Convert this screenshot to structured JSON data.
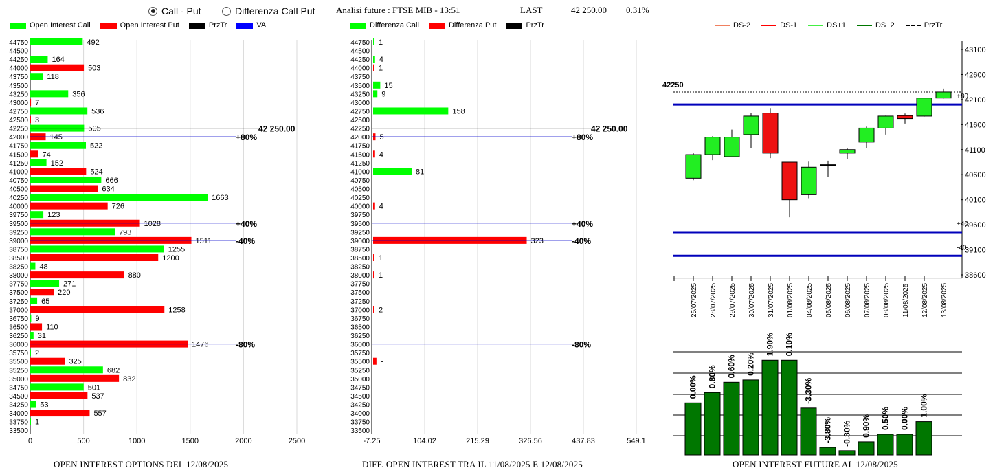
{
  "header": {
    "radio_callput": "Call - Put",
    "radio_diff": "Differenza Call Put",
    "title": "Analisi future : FTSE MIB - 13:51",
    "last_label": "LAST",
    "last_value": "42 250.00",
    "last_change": "0.31%"
  },
  "colors": {
    "green": "#00ff00",
    "red": "#ff0000",
    "blue": "#0000cc",
    "dark_green": "#007700"
  },
  "legends": {
    "left": [
      "Open Interest Call",
      "Open Interest Put",
      "PrzTr",
      "VA"
    ],
    "mid": [
      "Differenza Call",
      "Differenza Put",
      "PrzTr"
    ],
    "right": [
      "DS-2",
      "DS-1",
      "DS+1",
      "DS+2",
      "PrzTr"
    ]
  },
  "footers": {
    "left": "OPEN INTEREST OPTIONS DEL 12/08/2025",
    "mid": "DIFF. OPEN INTEREST TRA IL 11/08/2025 E 12/08/2025",
    "right": "OPEN INTEREST FUTURE AL 12/08/2025"
  },
  "chart_data": [
    {
      "type": "bar",
      "orientation": "horizontal",
      "strikes": [
        44750,
        44500,
        44250,
        44000,
        43750,
        43500,
        43250,
        43000,
        42750,
        42500,
        42250,
        42000,
        41750,
        41500,
        41250,
        41000,
        40750,
        40500,
        40250,
        40000,
        39750,
        39500,
        39250,
        39000,
        38750,
        38500,
        38250,
        38000,
        37750,
        37500,
        37250,
        37000,
        36750,
        36500,
        36250,
        36000,
        35750,
        35500,
        35250,
        35000,
        34750,
        34500,
        34250,
        34000,
        33750,
        33500
      ],
      "series": [
        {
          "name": "Open Interest Call",
          "points": [
            [
              44750,
              492
            ],
            [
              44250,
              164
            ],
            [
              43750,
              118
            ],
            [
              43250,
              356
            ],
            [
              42750,
              536
            ],
            [
              42250,
              505
            ],
            [
              41750,
              522
            ],
            [
              41250,
              152
            ],
            [
              40750,
              666
            ],
            [
              40250,
              1663
            ],
            [
              39750,
              123
            ],
            [
              39250,
              793
            ],
            [
              38750,
              1255
            ],
            [
              38250,
              48
            ],
            [
              37750,
              271
            ],
            [
              37250,
              65
            ],
            [
              36750,
              9
            ],
            [
              36250,
              31
            ],
            [
              35750,
              2
            ],
            [
              35250,
              682
            ],
            [
              34750,
              501
            ],
            [
              34250,
              53
            ],
            [
              33750,
              1
            ]
          ]
        },
        {
          "name": "Open Interest Put",
          "points": [
            [
              44000,
              503
            ],
            [
              43000,
              7
            ],
            [
              42500,
              3
            ],
            [
              42000,
              145
            ],
            [
              41500,
              74
            ],
            [
              41000,
              524
            ],
            [
              40500,
              634
            ],
            [
              40000,
              726
            ],
            [
              39500,
              1028
            ],
            [
              39000,
              1511
            ],
            [
              38500,
              1200
            ],
            [
              38000,
              880
            ],
            [
              37500,
              220
            ],
            [
              37000,
              1258
            ],
            [
              36500,
              110
            ],
            [
              36000,
              1476
            ],
            [
              35500,
              325
            ],
            [
              35000,
              832
            ],
            [
              34500,
              537
            ],
            [
              34000,
              557
            ]
          ]
        }
      ],
      "levels": [
        {
          "strike": 42250,
          "label": "42 250.00"
        },
        {
          "strike": 42000,
          "label": "+80%"
        },
        {
          "strike": 39500,
          "label": "+40%"
        },
        {
          "strike": 39000,
          "label": "-40%"
        },
        {
          "strike": 36000,
          "label": "-80%"
        }
      ],
      "x_ticks": [
        0,
        500,
        1000,
        1500,
        2000,
        2500
      ],
      "xlim": [
        0,
        2500
      ]
    },
    {
      "type": "bar",
      "orientation": "horizontal",
      "series": [
        {
          "name": "Differenza Call",
          "points": [
            [
              44750,
              1
            ],
            [
              44250,
              4
            ],
            [
              43500,
              15
            ],
            [
              43250,
              9
            ],
            [
              42750,
              158
            ],
            [
              41000,
              81
            ]
          ],
          "labels": [
            "1",
            "4",
            "15",
            "9",
            "158",
            "81"
          ]
        },
        {
          "name": "Differenza Put",
          "points": [
            [
              44000,
              1
            ],
            [
              42000,
              5
            ],
            [
              41500,
              4
            ],
            [
              40000,
              4
            ],
            [
              39000,
              323
            ],
            [
              38500,
              1
            ],
            [
              38000,
              1
            ],
            [
              37000,
              2
            ],
            [
              35500,
              7
            ]
          ],
          "labels": [
            "1",
            "5",
            "4",
            "4",
            "323",
            "1",
            "1",
            "2",
            "-"
          ]
        }
      ],
      "levels": [
        {
          "strike": 42250,
          "label": "42 250.00"
        },
        {
          "strike": 42000,
          "label": "+80%"
        },
        {
          "strike": 39500,
          "label": "+40%"
        },
        {
          "strike": 39000,
          "label": "-40%"
        },
        {
          "strike": 36000,
          "label": "-80%"
        }
      ],
      "x_ticks": [
        "-7.25",
        "104.02",
        "215.29",
        "326.56",
        "437.83",
        "549.1"
      ],
      "xlim": [
        -7.25,
        549.1
      ]
    },
    {
      "type": "candlestick",
      "dates": [
        "25/07/2025",
        "28/07/2025",
        "29/07/2025",
        "30/07/2025",
        "31/07/2025",
        "01/08/2025",
        "04/08/2025",
        "05/08/2025",
        "06/08/2025",
        "07/08/2025",
        "08/08/2025",
        "11/08/2025",
        "12/08/2025",
        "13/08/2025"
      ],
      "ohlc": [
        [
          40530,
          41030,
          40490,
          41000
        ],
        [
          41000,
          41370,
          40890,
          41350
        ],
        [
          40960,
          41500,
          40950,
          41350
        ],
        [
          41400,
          41830,
          41130,
          41770
        ],
        [
          41830,
          41930,
          40930,
          41030
        ],
        [
          40850,
          40850,
          39750,
          40100
        ],
        [
          40200,
          40860,
          40130,
          40750
        ],
        [
          40800,
          40880,
          40560,
          40800
        ],
        [
          41030,
          41130,
          40910,
          41100
        ],
        [
          41250,
          41560,
          41130,
          41530
        ],
        [
          41530,
          41780,
          41400,
          41770
        ],
        [
          41780,
          41820,
          41620,
          41720
        ],
        [
          41770,
          42130,
          41760,
          42130
        ],
        [
          42130,
          42320,
          42120,
          42250
        ]
      ],
      "y_ticks": [
        43100,
        42600,
        42100,
        41600,
        41100,
        40600,
        40100,
        39600,
        39100,
        38600
      ],
      "ylim": [
        38600,
        43200
      ],
      "last_price": 42250,
      "last_label": "42250",
      "levels": [
        {
          "value": 42000,
          "label": "+80"
        },
        {
          "value": 39450,
          "label": "+40"
        },
        {
          "value": 38980,
          "label": "-40"
        }
      ]
    },
    {
      "type": "bar",
      "values": [
        1110,
        1330,
        1550,
        1600,
        2020,
        2020,
        1000,
        160,
        90,
        280,
        440,
        440,
        710
      ],
      "labels": [
        "0.00%",
        "0.80%",
        "0.60%",
        "0.20%",
        "1.90%",
        "0.10%",
        "-3.30%",
        "-3.80%",
        "-0.30%",
        "0.90%",
        "0.50%",
        "0.00%",
        "1.00%"
      ]
    }
  ]
}
